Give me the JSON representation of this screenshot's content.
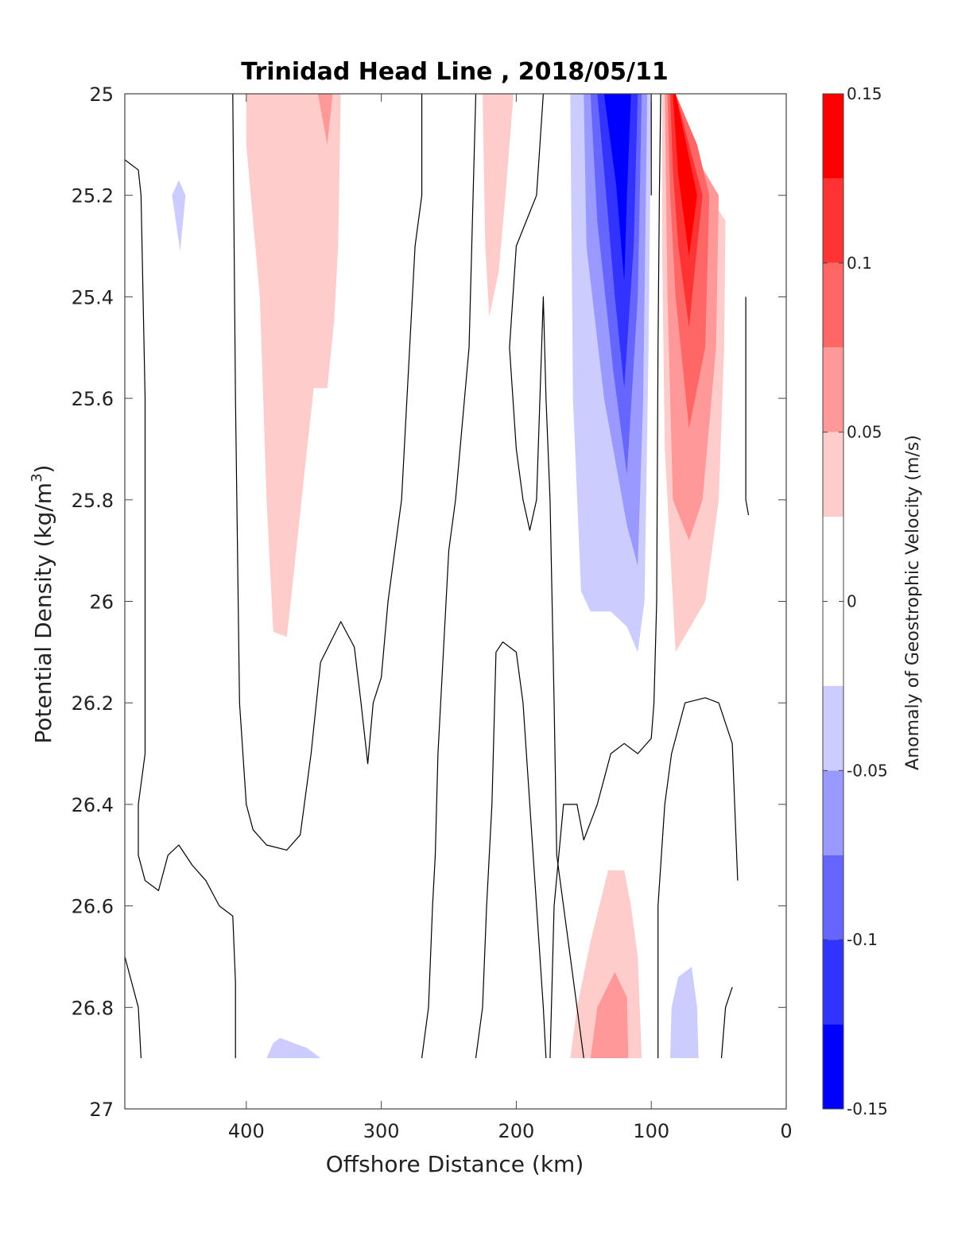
{
  "chart_data": {
    "type": "contourf",
    "title": "Trinidad Head Line , 2018/05/11",
    "xlabel": "Offshore Distance (km)",
    "ylabel": "Potential Density (kg/m",
    "ylabel_sup": "3",
    "ylabel_suffix": ")",
    "colorbar_label": "Anomaly of Geostrophic Velocity (m/s)",
    "xlim": [
      490,
      0
    ],
    "xreversed": true,
    "ylim": [
      25,
      27
    ],
    "yreversed": true,
    "x_ticks": [
      400,
      300,
      200,
      100,
      0
    ],
    "x_tick_labels": [
      "400",
      "300",
      "200",
      "100",
      "0"
    ],
    "y_ticks": [
      25,
      25.2,
      25.4,
      25.6,
      25.8,
      26,
      26.2,
      26.4,
      26.6,
      26.8,
      27
    ],
    "y_tick_labels": [
      "25",
      "25.2",
      "25.4",
      "25.6",
      "25.8",
      "26",
      "26.2",
      "26.4",
      "26.6",
      "26.8",
      "27"
    ],
    "colorbar": {
      "range": [
        -0.15,
        0.15
      ],
      "ticks": [
        0.15,
        0.1,
        0.05,
        0,
        -0.05,
        -0.1,
        -0.15
      ],
      "tick_labels": [
        "0.15",
        "0.1",
        "0.05",
        "0",
        "-0.05",
        "-0.1",
        "-0.15"
      ],
      "levels": [
        {
          "min": 0.125,
          "max": 0.15,
          "color": "#ff0000"
        },
        {
          "min": 0.1,
          "max": 0.125,
          "color": "#ff3333"
        },
        {
          "min": 0.075,
          "max": 0.1,
          "color": "#ff6666"
        },
        {
          "min": 0.05,
          "max": 0.075,
          "color": "#ff9999"
        },
        {
          "min": 0.025,
          "max": 0.05,
          "color": "#ffcccc"
        },
        {
          "min": -0.025,
          "max": 0.025,
          "color": "#ffffff"
        },
        {
          "min": -0.05,
          "max": -0.025,
          "color": "#ccccff"
        },
        {
          "min": -0.075,
          "max": -0.05,
          "color": "#9999ff"
        },
        {
          "min": -0.1,
          "max": -0.075,
          "color": "#6666ff"
        },
        {
          "min": -0.125,
          "max": -0.1,
          "color": "#3333ff"
        },
        {
          "min": -0.15,
          "max": -0.125,
          "color": "#0000ff"
        }
      ]
    },
    "regions": [
      {
        "name": "pos-upper-400-330",
        "color": "#ffcccc",
        "points": [
          [
            400,
            25
          ],
          [
            330,
            25
          ],
          [
            332,
            25.3
          ],
          [
            335,
            25.45
          ],
          [
            340,
            25.58
          ],
          [
            350,
            25.58
          ],
          [
            355,
            25.7
          ],
          [
            365,
            25.95
          ],
          [
            370,
            26.07
          ],
          [
            380,
            26.06
          ],
          [
            385,
            25.8
          ],
          [
            390,
            25.4
          ],
          [
            400,
            25.1
          ]
        ]
      },
      {
        "name": "pos-upper-345-340",
        "color": "#ff9999",
        "points": [
          [
            347,
            25
          ],
          [
            336,
            25
          ],
          [
            340,
            25.1
          ]
        ]
      },
      {
        "name": "pos-upper-225-200",
        "color": "#ffcccc",
        "points": [
          [
            225,
            25
          ],
          [
            202,
            25
          ],
          [
            208,
            25.2
          ],
          [
            213,
            25.35
          ],
          [
            220,
            25.44
          ],
          [
            223,
            25.3
          ]
        ]
      },
      {
        "name": "neg-upper-455-445",
        "color": "#ccccff",
        "points": [
          [
            455,
            25.2
          ],
          [
            450,
            25.17
          ],
          [
            445,
            25.2
          ],
          [
            449,
            25.31
          ]
        ]
      },
      {
        "name": "neg-core-l1",
        "color": "#ccccff",
        "points": [
          [
            160,
            25
          ],
          [
            100,
            25
          ],
          [
            102,
            25.5
          ],
          [
            105,
            26
          ],
          [
            110,
            26.1
          ],
          [
            118,
            26.05
          ],
          [
            130,
            26.02
          ],
          [
            145,
            26.02
          ],
          [
            152,
            25.98
          ],
          [
            158,
            25.6
          ]
        ]
      },
      {
        "name": "neg-core-l2",
        "color": "#9999ff",
        "points": [
          [
            150,
            25
          ],
          [
            103,
            25
          ],
          [
            106,
            25.6
          ],
          [
            110,
            25.93
          ],
          [
            118,
            25.85
          ],
          [
            135,
            25.6
          ],
          [
            148,
            25.3
          ]
        ]
      },
      {
        "name": "neg-core-l3",
        "color": "#6666ff",
        "points": [
          [
            145,
            25
          ],
          [
            107,
            25
          ],
          [
            110,
            25.4
          ],
          [
            118,
            25.75
          ],
          [
            128,
            25.55
          ],
          [
            140,
            25.25
          ]
        ]
      },
      {
        "name": "neg-core-l4",
        "color": "#3333ff",
        "points": [
          [
            140,
            25
          ],
          [
            110,
            25
          ],
          [
            113,
            25.3
          ],
          [
            120,
            25.58
          ],
          [
            127,
            25.4
          ],
          [
            135,
            25.15
          ]
        ]
      },
      {
        "name": "neg-core-l5",
        "color": "#0000ff",
        "points": [
          [
            135,
            25
          ],
          [
            115,
            25
          ],
          [
            118,
            25.2
          ],
          [
            120,
            25.37
          ],
          [
            126,
            25.18
          ]
        ]
      },
      {
        "name": "pos-core-l1",
        "color": "#ffcccc",
        "points": [
          [
            92,
            25
          ],
          [
            82,
            25
          ],
          [
            70,
            25.15
          ],
          [
            45,
            25.25
          ],
          [
            46,
            25.5
          ],
          [
            50,
            25.8
          ],
          [
            60,
            26
          ],
          [
            82,
            26.1
          ],
          [
            90,
            25.7
          ],
          [
            92,
            25.3
          ]
        ]
      },
      {
        "name": "pos-core-l2",
        "color": "#ff9999",
        "points": [
          [
            90,
            25
          ],
          [
            82,
            25
          ],
          [
            68,
            25.12
          ],
          [
            50,
            25.2
          ],
          [
            52,
            25.5
          ],
          [
            62,
            25.8
          ],
          [
            72,
            25.88
          ],
          [
            84,
            25.8
          ],
          [
            88,
            25.4
          ]
        ]
      },
      {
        "name": "pos-core-l3",
        "color": "#ff6666",
        "points": [
          [
            88,
            25
          ],
          [
            82,
            25
          ],
          [
            66,
            25.1
          ],
          [
            57,
            25.2
          ],
          [
            60,
            25.5
          ],
          [
            72,
            25.66
          ],
          [
            82,
            25.4
          ],
          [
            86,
            25.2
          ]
        ]
      },
      {
        "name": "pos-core-l4",
        "color": "#ff3333",
        "points": [
          [
            86,
            25
          ],
          [
            82,
            25
          ],
          [
            62,
            25.2
          ],
          [
            66,
            25.3
          ],
          [
            72,
            25.46
          ],
          [
            80,
            25.3
          ],
          [
            84,
            25.15
          ]
        ]
      },
      {
        "name": "pos-core-l5",
        "color": "#ff0000",
        "points": [
          [
            84,
            25
          ],
          [
            82,
            25
          ],
          [
            66,
            25.2
          ],
          [
            72,
            25.32
          ],
          [
            80,
            25.16
          ]
        ]
      },
      {
        "name": "pos-deep-l1",
        "color": "#ffcccc",
        "points": [
          [
            160,
            26.9
          ],
          [
            107,
            26.9
          ],
          [
            110,
            26.7
          ],
          [
            115,
            26.6
          ],
          [
            120,
            26.53
          ],
          [
            132,
            26.53
          ],
          [
            145,
            26.67
          ],
          [
            155,
            26.8
          ]
        ]
      },
      {
        "name": "pos-deep-l2",
        "color": "#ff9999",
        "points": [
          [
            145,
            26.9
          ],
          [
            117,
            26.9
          ],
          [
            118,
            26.78
          ],
          [
            127,
            26.73
          ],
          [
            140,
            26.8
          ]
        ]
      },
      {
        "name": "neg-deep-80-65",
        "color": "#ccccff",
        "points": [
          [
            86,
            26.9
          ],
          [
            65,
            26.9
          ],
          [
            66,
            26.8
          ],
          [
            70,
            26.72
          ],
          [
            80,
            26.74
          ],
          [
            85,
            26.8
          ]
        ]
      },
      {
        "name": "neg-deep-385-345",
        "color": "#ccccff",
        "points": [
          [
            385,
            26.9
          ],
          [
            345,
            26.9
          ],
          [
            355,
            26.88
          ],
          [
            375,
            26.86
          ],
          [
            380,
            26.87
          ]
        ]
      }
    ],
    "contours": [
      {
        "points": [
          [
            490,
            25.13
          ],
          [
            480,
            25.15
          ],
          [
            478,
            25.2
          ],
          [
            475,
            25.6
          ],
          [
            475,
            26.1
          ],
          [
            475,
            26.2
          ],
          [
            475,
            26.3
          ],
          [
            480,
            26.4
          ],
          [
            480,
            26.5
          ],
          [
            475,
            26.55
          ],
          [
            465,
            26.57
          ],
          [
            458,
            26.5
          ],
          [
            450,
            26.48
          ],
          [
            440,
            26.52
          ],
          [
            430,
            26.55
          ],
          [
            420,
            26.6
          ],
          [
            410,
            26.62
          ],
          [
            408,
            26.75
          ],
          [
            408,
            26.9
          ]
        ]
      },
      {
        "points": [
          [
            410,
            25
          ],
          [
            408,
            25.6
          ],
          [
            405,
            26.2
          ],
          [
            400,
            26.4
          ],
          [
            395,
            26.45
          ],
          [
            385,
            26.48
          ],
          [
            370,
            26.49
          ],
          [
            360,
            26.46
          ],
          [
            352,
            26.3
          ],
          [
            345,
            26.12
          ],
          [
            330,
            26.04
          ],
          [
            320,
            26.09
          ],
          [
            315,
            26.2
          ],
          [
            310,
            26.32
          ],
          [
            306,
            26.2
          ],
          [
            300,
            26.15
          ],
          [
            295,
            26
          ],
          [
            285,
            25.8
          ],
          [
            275,
            25.3
          ],
          [
            270,
            25.2
          ],
          [
            270,
            25
          ]
        ]
      },
      {
        "points": [
          [
            490,
            26.7
          ],
          [
            480,
            26.8
          ],
          [
            478,
            26.9
          ]
        ]
      },
      {
        "points": [
          [
            230,
            25
          ],
          [
            235,
            25.5
          ],
          [
            245,
            25.8
          ],
          [
            250,
            25.9
          ],
          [
            258,
            26.3
          ],
          [
            260,
            26.5
          ],
          [
            262,
            26.6
          ],
          [
            265,
            26.8
          ],
          [
            270,
            26.9
          ]
        ]
      },
      {
        "points": [
          [
            180,
            25
          ],
          [
            185,
            25.2
          ],
          [
            200,
            25.3
          ],
          [
            205,
            25.5
          ],
          [
            200,
            25.7
          ],
          [
            195,
            25.8
          ],
          [
            190,
            25.86
          ],
          [
            185,
            25.8
          ],
          [
            180,
            25.4
          ],
          [
            178,
            25.6
          ],
          [
            175,
            25.8
          ],
          [
            172,
            26.2
          ],
          [
            170,
            26.5
          ],
          [
            165,
            26.6
          ],
          [
            160,
            26.7
          ],
          [
            155,
            26.8
          ],
          [
            150,
            26.9
          ]
        ]
      },
      {
        "points": [
          [
            230,
            26.9
          ],
          [
            225,
            26.8
          ],
          [
            222,
            26.6
          ],
          [
            218,
            26.4
          ],
          [
            215,
            26.1
          ],
          [
            210,
            26.08
          ],
          [
            200,
            26.1
          ],
          [
            195,
            26.2
          ],
          [
            190,
            26.4
          ],
          [
            185,
            26.6
          ],
          [
            180,
            26.8
          ],
          [
            178,
            26.9
          ]
        ]
      },
      {
        "points": [
          [
            175,
            26.9
          ],
          [
            172,
            26.6
          ],
          [
            165,
            26.4
          ],
          [
            155,
            26.4
          ],
          [
            150,
            26.47
          ],
          [
            140,
            26.4
          ],
          [
            130,
            26.3
          ],
          [
            120,
            26.28
          ],
          [
            110,
            26.3
          ],
          [
            100,
            26.27
          ],
          [
            98,
            26.2
          ],
          [
            96,
            26
          ],
          [
            95,
            25.5
          ],
          [
            94,
            25.2
          ],
          [
            93,
            25
          ]
        ]
      },
      {
        "points": [
          [
            95,
            26.9
          ],
          [
            95,
            26.6
          ],
          [
            90,
            26.4
          ],
          [
            85,
            26.3
          ],
          [
            75,
            26.2
          ],
          [
            60,
            26.19
          ],
          [
            50,
            26.2
          ],
          [
            40,
            26.28
          ],
          [
            36,
            26.55
          ]
        ]
      },
      {
        "points": [
          [
            30,
            25.4
          ],
          [
            30,
            25.8
          ],
          [
            28,
            25.83
          ]
        ]
      },
      {
        "points": [
          [
            48,
            26.9
          ],
          [
            45,
            26.8
          ],
          [
            40,
            26.76
          ]
        ]
      },
      {
        "points": [
          [
            100,
            25
          ],
          [
            100,
            25.1
          ],
          [
            100,
            25.2
          ]
        ]
      }
    ]
  }
}
